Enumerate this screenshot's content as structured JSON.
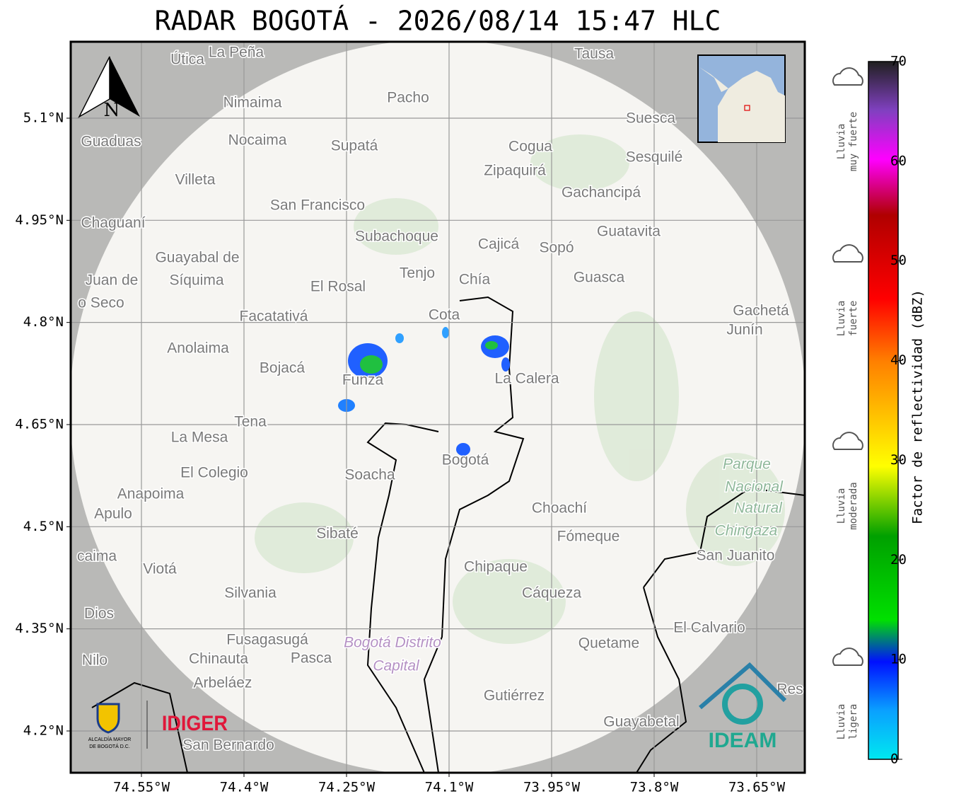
{
  "title": "RADAR BOGOTÁ - 2026/08/14 15:47 HLC",
  "map": {
    "north": "N",
    "lat_ticks": [
      {
        "value": 5.1,
        "label": "5.1°N"
      },
      {
        "value": 4.95,
        "label": "4.95°N"
      },
      {
        "value": 4.8,
        "label": "4.8°N"
      },
      {
        "value": 4.65,
        "label": "4.65°N"
      },
      {
        "value": 4.5,
        "label": "4.5°N"
      },
      {
        "value": 4.35,
        "label": "4.35°N"
      },
      {
        "value": 4.2,
        "label": "4.2°N"
      }
    ],
    "lon_ticks": [
      {
        "value": -74.55,
        "label": "74.55°W"
      },
      {
        "value": -74.4,
        "label": "74.4°W"
      },
      {
        "value": -74.25,
        "label": "74.25°W"
      },
      {
        "value": -74.1,
        "label": "74.1°W"
      },
      {
        "value": -73.95,
        "label": "73.95°W"
      },
      {
        "value": -73.8,
        "label": "73.8°W"
      },
      {
        "value": -73.65,
        "label": "73.65°W"
      }
    ],
    "places": [
      "La Peña",
      "Útica",
      "Tausa",
      "Pacho",
      "Nimaima",
      "Suesca",
      "Guaduas",
      "Nocaima",
      "Supatá",
      "Cogua",
      "Sesquilé",
      "Zipaquirá",
      "Villeta",
      "Gachancipá",
      "San Francisco",
      "Chaguaní",
      "Guatavita",
      "Subachoque",
      "Cajicá",
      "Sopó",
      "Guayabal de",
      "Síquima",
      "Juan de",
      "Tenjo",
      "Chía",
      "Guasca",
      "El Rosal",
      "o Seco",
      "Facatativá",
      "Cota",
      "Gachetá",
      "Junín",
      "Anolaima",
      "Bojacá",
      "Funza",
      "La Calera",
      "Tena",
      "La Mesa",
      "Bogotá",
      "Soacha",
      "El Colegio",
      "Anapoima",
      "Apulo",
      "Choachí",
      "Fómeque",
      "Sibaté",
      "San Juanito",
      "caima",
      "Viotá",
      "Chipaque",
      "Silvania",
      "Cáqueza",
      "Dios",
      "El Calvario",
      "Fusagasugá",
      "Quetame",
      "Nilo",
      "Chinauta",
      "Pasca",
      "Arbeláez",
      "Gutiérrez",
      "Res",
      "Guayabetal",
      "San Bernardo"
    ],
    "park": [
      "Parque",
      "Nacional",
      "Natural",
      "Chingaza"
    ],
    "district": [
      "Bogotá Distrito",
      "Capital"
    ]
  },
  "colorbar": {
    "label": "Factor de reflectividad (dBZ)",
    "ticks": [
      0,
      10,
      20,
      30,
      40,
      50,
      60,
      70
    ]
  },
  "rain_levels": [
    [
      "Lluvia",
      "muy fuerte"
    ],
    [
      "Lluvia",
      "fuerte"
    ],
    [
      "Lluvia",
      "moderada"
    ],
    [
      "Lluvia",
      "ligera"
    ]
  ],
  "logos": {
    "alcaldia": [
      "ALCALDÍA MAYOR",
      "DE BOGOTÁ D.C."
    ],
    "idiger": "IDIGER",
    "ideam": "IDEAM"
  }
}
